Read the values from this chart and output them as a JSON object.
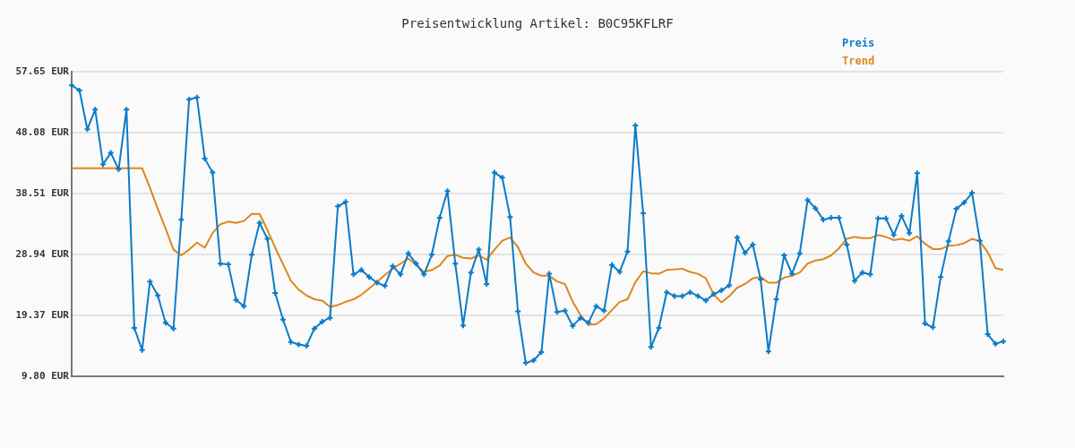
{
  "chart_data": {
    "type": "line",
    "title": "Preisentwicklung Artikel: B0C95KFLRF",
    "categories": [
      null,
      null,
      null,
      null,
      null,
      null,
      null,
      null,
      null,
      null,
      null,
      null,
      null,
      null,
      null,
      null,
      null,
      null,
      null,
      null,
      null,
      null,
      null,
      null,
      null,
      null,
      null,
      null,
      null,
      null,
      null,
      null,
      null,
      null,
      null,
      null,
      null,
      null,
      null,
      null,
      null,
      null,
      null,
      null,
      null,
      null,
      null,
      null,
      null,
      null,
      null,
      null,
      null,
      null,
      null,
      null,
      null,
      null,
      null,
      null,
      null,
      null,
      null,
      null,
      null,
      null,
      null,
      null,
      null,
      null,
      null,
      null,
      null,
      null,
      null,
      null,
      null,
      null,
      null,
      null,
      null,
      null,
      null,
      null,
      null,
      null,
      null,
      null,
      null,
      null,
      null,
      null,
      null,
      null,
      null,
      null,
      null,
      null,
      null,
      null,
      null,
      null,
      null,
      null,
      null,
      null,
      null,
      null,
      null,
      null,
      null,
      null,
      null,
      null,
      null,
      null,
      null,
      null,
      null,
      null
    ],
    "series": [
      {
        "name": "Preis",
        "color": "#0a7bc8",
        "marker": "cross",
        "values": [
          55.5,
          54.7,
          48.6,
          51.7,
          43.1,
          44.9,
          42.3,
          51.7,
          17.4,
          13.9,
          24.7,
          22.5,
          18.2,
          17.3,
          34.4,
          53.3,
          53.6,
          44.0,
          41.8,
          27.5,
          27.4,
          21.8,
          20.8,
          28.9,
          33.9,
          31.4,
          22.9,
          18.7,
          15.2,
          14.8,
          14.6,
          17.3,
          18.4,
          19.0,
          36.5,
          37.2,
          25.8,
          26.5,
          25.4,
          24.5,
          24.0,
          27.1,
          25.8,
          29.1,
          27.5,
          25.8,
          28.9,
          34.7,
          38.9,
          27.5,
          17.8,
          26.1,
          29.7,
          24.3,
          41.8,
          41.0,
          34.8,
          20.0,
          11.9,
          12.3,
          13.6,
          25.9,
          19.9,
          20.1,
          17.7,
          19.0,
          18.2,
          20.8,
          20.1,
          27.3,
          26.2,
          29.4,
          49.2,
          35.4,
          14.4,
          17.4,
          23.0,
          22.4,
          22.4,
          23.0,
          22.4,
          21.7,
          22.7,
          23.3,
          24.1,
          31.6,
          29.2,
          30.5,
          25.0,
          13.7,
          21.9,
          28.8,
          25.9,
          29.1,
          37.5,
          36.2,
          34.4,
          34.7,
          34.7,
          30.5,
          24.8,
          26.1,
          25.8,
          34.6,
          34.6,
          32.0,
          35.0,
          32.3,
          41.7,
          18.1,
          17.5,
          25.4,
          31.0,
          36.1,
          37.1,
          38.6,
          31.1,
          16.4,
          14.9,
          15.3
        ]
      },
      {
        "name": "Trend",
        "color": "#e0861a",
        "marker": "none",
        "values": [
          42.5,
          42.5,
          42.5,
          42.5,
          42.5,
          42.5,
          42.5,
          42.5,
          42.5,
          42.5,
          39.4,
          36.1,
          33.0,
          29.7,
          28.8,
          29.7,
          30.8,
          30.0,
          32.3,
          33.7,
          34.1,
          33.9,
          34.2,
          35.3,
          35.3,
          32.8,
          30.0,
          27.4,
          24.8,
          23.4,
          22.5,
          21.9,
          21.7,
          20.7,
          21.0,
          21.5,
          21.9,
          22.6,
          23.6,
          24.6,
          25.7,
          26.7,
          27.5,
          28.3,
          27.3,
          26.2,
          26.5,
          27.2,
          28.7,
          28.9,
          28.4,
          28.3,
          28.8,
          28.1,
          29.7,
          31.1,
          31.6,
          30.1,
          27.5,
          26.1,
          25.6,
          25.6,
          24.7,
          24.3,
          21.5,
          19.4,
          17.9,
          18.0,
          18.9,
          20.2,
          21.5,
          21.9,
          24.6,
          26.3,
          26.0,
          25.9,
          26.5,
          26.6,
          26.7,
          26.2,
          25.9,
          25.2,
          22.7,
          21.4,
          22.4,
          23.7,
          24.3,
          25.2,
          25.4,
          24.5,
          24.5,
          25.3,
          25.6,
          26.1,
          27.5,
          28.0,
          28.2,
          28.8,
          29.9,
          31.4,
          31.7,
          31.5,
          31.5,
          32.0,
          31.7,
          31.2,
          31.4,
          31.1,
          31.8,
          30.6,
          29.8,
          29.8,
          30.3,
          30.4,
          30.7,
          31.4,
          31.0,
          29.3,
          26.8,
          26.5
        ]
      }
    ],
    "ylim": [
      9.8,
      57.65
    ],
    "yticks": [
      {
        "value": 9.8,
        "label": "9.80 EUR"
      },
      {
        "value": 19.37,
        "label": "19.37 EUR"
      },
      {
        "value": 28.94,
        "label": "28.94 EUR"
      },
      {
        "value": 38.51,
        "label": "38.51 EUR"
      },
      {
        "value": 48.08,
        "label": "48.08 EUR"
      },
      {
        "value": 57.65,
        "label": "57.65 EUR"
      }
    ],
    "grid": "y",
    "legend": "top right",
    "line_style": "solid",
    "tick_labels": "y"
  }
}
